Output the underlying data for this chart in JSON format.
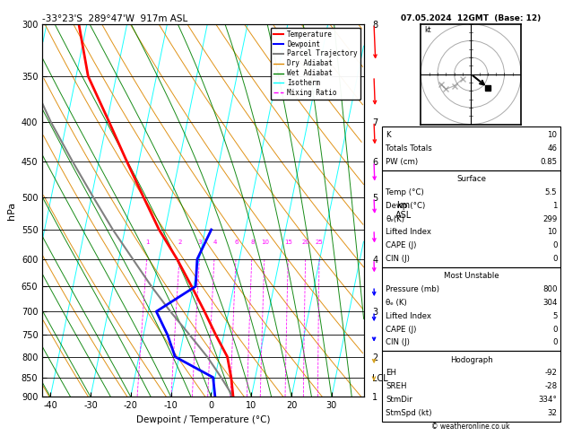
{
  "title_left": "-33°23'S  289°47'W  917m ASL",
  "title_right": "07.05.2024  12GMT  (Base: 12)",
  "xlabel": "Dewpoint / Temperature (°C)",
  "ylabel_left": "hPa",
  "pmin": 300,
  "pmax": 900,
  "temp_xlim": [
    -42,
    38
  ],
  "temp_xticks": [
    -40,
    -30,
    -20,
    -10,
    0,
    10,
    20,
    30
  ],
  "pressure_ticks": [
    300,
    350,
    400,
    450,
    500,
    550,
    600,
    650,
    700,
    750,
    800,
    850,
    900
  ],
  "km_labels": {
    "300": "8",
    "400": "7",
    "450": "6",
    "500": "5",
    "600": "4",
    "700": "3",
    "800": "2",
    "850": "LCL",
    "900": "1"
  },
  "skew_factor": 40,
  "temp_profile_p": [
    900,
    850,
    800,
    750,
    700,
    650,
    600,
    550,
    500,
    450,
    400,
    350,
    300
  ],
  "temp_profile_t": [
    5.5,
    4.0,
    2.0,
    -2.0,
    -6.0,
    -10.5,
    -15.5,
    -21.5,
    -27.0,
    -33.0,
    -39.5,
    -47.0,
    -52.0
  ],
  "dewp_profile_p": [
    900,
    850,
    800,
    750,
    700,
    650,
    600,
    550
  ],
  "dewp_profile_t": [
    1.0,
    -0.5,
    -11.0,
    -14.0,
    -18.0,
    -9.5,
    -10.5,
    -8.5
  ],
  "parcel_profile_p": [
    900,
    850,
    800,
    750,
    700,
    650,
    600,
    550,
    500,
    450,
    400,
    350,
    300
  ],
  "parcel_profile_t": [
    5.5,
    1.5,
    -3.0,
    -8.5,
    -14.5,
    -20.5,
    -26.5,
    -33.0,
    -39.5,
    -46.5,
    -54.0,
    -61.5,
    -69.0
  ],
  "mixing_ratios": [
    1,
    2,
    3,
    4,
    6,
    8,
    10,
    15,
    20,
    25
  ],
  "dry_adiabats_theta": [
    240,
    250,
    260,
    270,
    280,
    290,
    300,
    310,
    320,
    330,
    340,
    350,
    360,
    370,
    380,
    390,
    400,
    410,
    420,
    430,
    440
  ],
  "wet_adiabats_t0": [
    -40,
    -35,
    -30,
    -25,
    -20,
    -15,
    -10,
    -5,
    0,
    5,
    10,
    15,
    20,
    25,
    30,
    35,
    40
  ],
  "isotherms_t": [
    -90,
    -80,
    -70,
    -60,
    -50,
    -40,
    -30,
    -20,
    -10,
    0,
    10,
    20,
    30,
    40,
    50,
    60
  ],
  "col_temp": "red",
  "col_dewp": "blue",
  "col_parcel": "gray",
  "col_dry": "#dd8800",
  "col_wet": "green",
  "col_iso": "cyan",
  "col_mr": "magenta",
  "stats_K": 10,
  "stats_TT": 46,
  "stats_PW": 0.85,
  "surf_temp": 5.5,
  "surf_dewp": 1,
  "surf_theta_e": 299,
  "surf_LI": 10,
  "surf_CAPE": 0,
  "surf_CIN": 0,
  "mu_press": 800,
  "mu_theta_e": 304,
  "mu_LI": 5,
  "mu_CAPE": 0,
  "mu_CIN": 0,
  "hodo_EH": -92,
  "hodo_SREH": -28,
  "hodo_StmDir": "334°",
  "hodo_StmSpd": 32,
  "copyright": "© weatheronline.co.uk",
  "wind_barbs": [
    {
      "p": 300,
      "color": "red",
      "u": 8,
      "v": -12
    },
    {
      "p": 350,
      "color": "red",
      "u": 6,
      "v": -10
    },
    {
      "p": 400,
      "color": "red",
      "u": 5,
      "v": -8
    },
    {
      "p": 450,
      "color": "magenta",
      "u": 4,
      "v": -7
    },
    {
      "p": 500,
      "color": "magenta",
      "u": 4,
      "v": -6
    },
    {
      "p": 550,
      "color": "magenta",
      "u": 3,
      "v": -5
    },
    {
      "p": 600,
      "color": "magenta",
      "u": 2,
      "v": -5
    },
    {
      "p": 650,
      "color": "blue",
      "u": 2,
      "v": -4
    },
    {
      "p": 700,
      "color": "blue",
      "u": 1,
      "v": -4
    },
    {
      "p": 750,
      "color": "blue",
      "u": 1,
      "v": -3
    },
    {
      "p": 800,
      "color": "goldenrod",
      "u": 1,
      "v": -3
    },
    {
      "p": 850,
      "color": "goldenrod",
      "u": 0,
      "v": -2
    },
    {
      "p": 900,
      "color": "goldenrod",
      "u": 0,
      "v": -2
    }
  ]
}
